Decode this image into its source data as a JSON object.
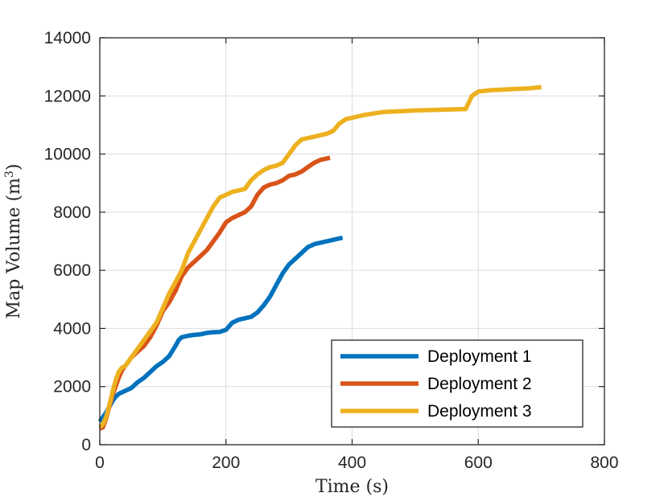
{
  "chart_data": {
    "type": "line",
    "title": "",
    "xlabel": "Time (s)",
    "ylabel": "Map Volume (m",
    "ylabel_sup": "3",
    "ylabel_close": ")",
    "xlim": [
      0,
      800
    ],
    "ylim": [
      0,
      14000
    ],
    "xticks": [
      0,
      200,
      400,
      600,
      800
    ],
    "yticks": [
      0,
      2000,
      4000,
      6000,
      8000,
      10000,
      12000,
      14000
    ],
    "grid": true,
    "legend_position": "bottom-right",
    "series": [
      {
        "name": "Deployment 1",
        "color": "#0072BD",
        "x": [
          0,
          5,
          10,
          15,
          20,
          25,
          30,
          35,
          40,
          50,
          60,
          70,
          80,
          90,
          100,
          110,
          120,
          125,
          130,
          140,
          150,
          160,
          170,
          180,
          190,
          200,
          210,
          220,
          230,
          240,
          250,
          260,
          270,
          280,
          290,
          300,
          310,
          320,
          330,
          340,
          350,
          360,
          370,
          380,
          385
        ],
        "y": [
          800,
          950,
          1100,
          1300,
          1500,
          1650,
          1750,
          1800,
          1850,
          1950,
          2150,
          2300,
          2500,
          2700,
          2850,
          3050,
          3400,
          3600,
          3700,
          3750,
          3780,
          3800,
          3850,
          3870,
          3880,
          3950,
          4200,
          4300,
          4350,
          4400,
          4550,
          4800,
          5100,
          5500,
          5900,
          6200,
          6400,
          6600,
          6800,
          6900,
          6950,
          7000,
          7050,
          7100,
          7120
        ]
      },
      {
        "name": "Deployment 2",
        "color": "#D95319",
        "x": [
          0,
          5,
          10,
          15,
          20,
          25,
          30,
          35,
          40,
          45,
          50,
          60,
          70,
          80,
          90,
          100,
          110,
          120,
          130,
          140,
          150,
          160,
          170,
          180,
          190,
          200,
          210,
          220,
          230,
          240,
          250,
          260,
          270,
          280,
          290,
          300,
          310,
          320,
          330,
          340,
          350,
          360,
          365
        ],
        "y": [
          550,
          600,
          900,
          1300,
          1700,
          2000,
          2300,
          2550,
          2700,
          2850,
          3000,
          3200,
          3400,
          3700,
          4100,
          4600,
          4900,
          5300,
          5800,
          6100,
          6300,
          6500,
          6700,
          7000,
          7300,
          7650,
          7800,
          7900,
          8000,
          8200,
          8600,
          8850,
          8950,
          9000,
          9100,
          9250,
          9300,
          9400,
          9550,
          9700,
          9800,
          9850,
          9870
        ]
      },
      {
        "name": "Deployment 3",
        "color": "#EDB120",
        "x": [
          0,
          5,
          10,
          15,
          20,
          25,
          30,
          35,
          40,
          50,
          60,
          70,
          80,
          90,
          100,
          110,
          120,
          130,
          140,
          150,
          160,
          170,
          180,
          190,
          200,
          210,
          220,
          230,
          240,
          250,
          260,
          270,
          280,
          290,
          300,
          310,
          320,
          330,
          340,
          350,
          360,
          370,
          380,
          390,
          400,
          420,
          450,
          500,
          550,
          580,
          590,
          600,
          620,
          650,
          680,
          700
        ],
        "y": [
          600,
          700,
          950,
          1350,
          1800,
          2200,
          2500,
          2650,
          2700,
          3000,
          3300,
          3600,
          3900,
          4200,
          4700,
          5200,
          5600,
          6000,
          6600,
          7000,
          7400,
          7800,
          8200,
          8500,
          8600,
          8700,
          8750,
          8800,
          9100,
          9300,
          9450,
          9550,
          9600,
          9700,
          10000,
          10300,
          10500,
          10550,
          10600,
          10650,
          10700,
          10800,
          11050,
          11200,
          11250,
          11350,
          11450,
          11500,
          11530,
          11550,
          12000,
          12150,
          12200,
          12230,
          12260,
          12300
        ]
      }
    ]
  }
}
